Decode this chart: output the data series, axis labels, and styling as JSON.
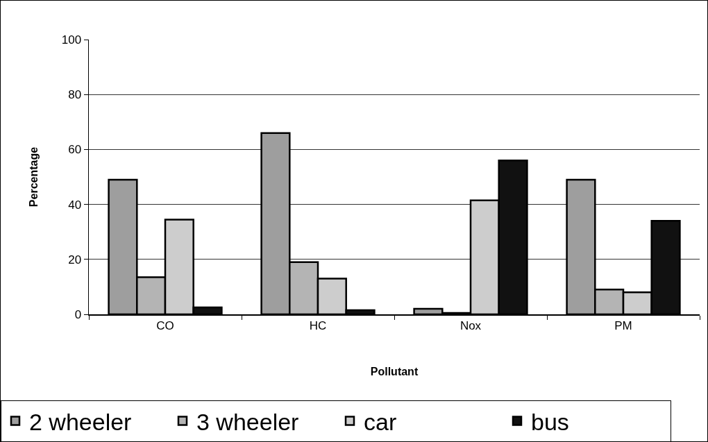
{
  "chart_data": {
    "type": "bar",
    "xlabel": "Pollutant",
    "ylabel": "Percentage",
    "categories": [
      "CO",
      "HC",
      "Nox",
      "PM"
    ],
    "series": [
      {
        "name": "2 wheeler",
        "color": "#9e9e9e",
        "values": [
          49,
          66,
          2,
          49
        ]
      },
      {
        "name": "3 wheeler",
        "color": "#b4b4b4",
        "values": [
          13.5,
          19,
          0.5,
          9
        ]
      },
      {
        "name": "car",
        "color": "#cdcdcd",
        "values": [
          34.5,
          13,
          41.5,
          8
        ]
      },
      {
        "name": "bus",
        "color": "#111111",
        "values": [
          2.5,
          1.5,
          56,
          34
        ]
      }
    ],
    "ylim": [
      0,
      100
    ],
    "yticks": [
      0,
      20,
      40,
      60,
      80,
      100
    ],
    "grid": "y",
    "legend": "bottom"
  }
}
